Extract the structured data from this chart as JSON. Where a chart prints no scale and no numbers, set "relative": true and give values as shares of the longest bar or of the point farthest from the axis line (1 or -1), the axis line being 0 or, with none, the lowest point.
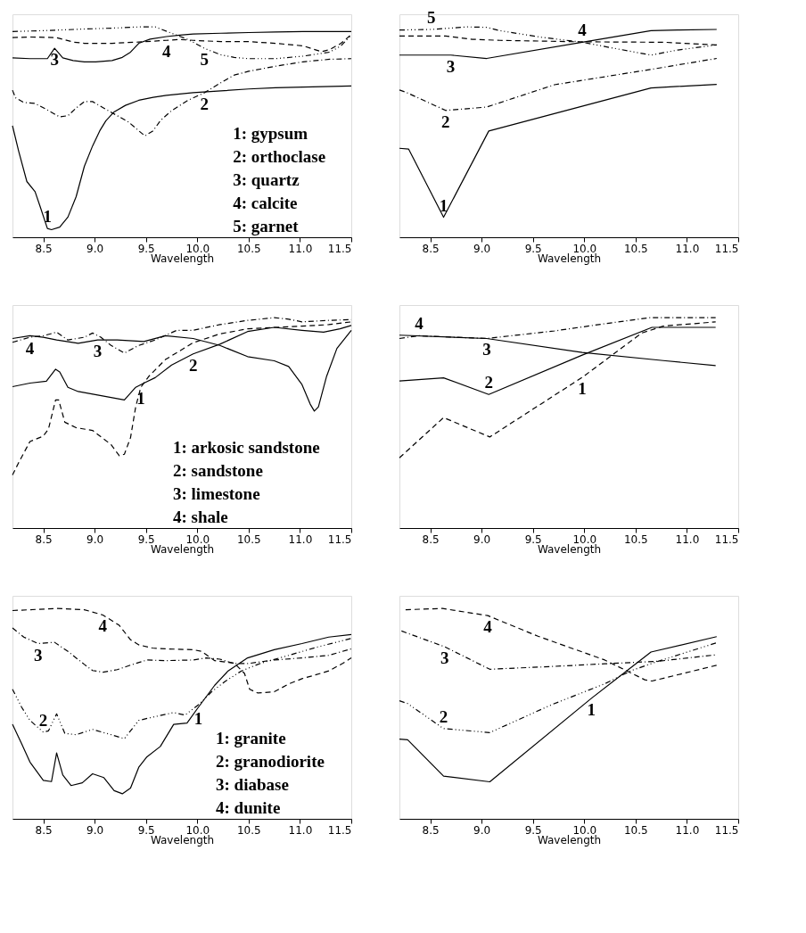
{
  "chart_data": [
    {
      "type": "line",
      "relative": true,
      "xlabel": "Wavelength",
      "xlim": [
        8.2,
        11.5
      ],
      "xticks": [
        8.5,
        {
          "value": 9,
          "label": "9.0"
        },
        9.5,
        {
          "value": 10,
          "label": "10.0"
        },
        10.5,
        {
          "value": 11,
          "label": "11.0"
        },
        11.5
      ],
      "grid": false,
      "series": [
        {
          "name": "1",
          "color": "#000000",
          "line_style": "solid",
          "x": [
            8.2,
            8.26,
            8.34,
            8.42,
            8.47,
            8.54,
            8.58,
            8.66,
            8.74,
            8.82,
            8.9,
            8.98,
            9.05,
            9.11,
            9.19,
            9.3,
            9.43,
            9.57,
            9.7,
            9.96,
            10.23,
            10.5,
            10.76,
            11.03,
            11.5
          ],
          "values": [
            0.53,
            0.41,
            0.265,
            0.217,
            0.145,
            0.042,
            0.036,
            0.048,
            0.096,
            0.193,
            0.337,
            0.434,
            0.506,
            0.554,
            0.596,
            0.627,
            0.651,
            0.665,
            0.675,
            0.687,
            0.696,
            0.705,
            0.711,
            0.714,
            0.719
          ]
        },
        {
          "name": "2",
          "color": "#000000",
          "line_style": "dashdot",
          "x": [
            8.2,
            8.23,
            8.31,
            8.42,
            8.53,
            8.66,
            8.74,
            8.82,
            8.9,
            8.98,
            9.09,
            9.22,
            9.33,
            9.43,
            9.49,
            9.57,
            9.64,
            9.75,
            9.91,
            10.07,
            10.23,
            10.36,
            10.5,
            10.76,
            11.03,
            11.29,
            11.5
          ],
          "values": [
            0.699,
            0.663,
            0.641,
            0.636,
            0.608,
            0.572,
            0.578,
            0.614,
            0.645,
            0.645,
            0.614,
            0.578,
            0.548,
            0.506,
            0.482,
            0.506,
            0.554,
            0.602,
            0.651,
            0.687,
            0.735,
            0.771,
            0.789,
            0.813,
            0.834,
            0.846,
            0.849
          ]
        },
        {
          "name": "3",
          "color": "#000000",
          "line_style": "solid",
          "x": [
            8.2,
            8.37,
            8.54,
            8.61,
            8.69,
            8.79,
            8.9,
            9.01,
            9.17,
            9.27,
            9.35,
            9.43,
            9.54,
            9.7,
            9.83,
            9.96,
            10.23,
            10.5,
            10.76,
            11.03,
            11.5
          ],
          "values": [
            0.853,
            0.849,
            0.849,
            0.898,
            0.853,
            0.84,
            0.834,
            0.834,
            0.84,
            0.855,
            0.88,
            0.922,
            0.942,
            0.954,
            0.961,
            0.966,
            0.97,
            0.973,
            0.976,
            0.978,
            0.978
          ]
        },
        {
          "name": "4",
          "color": "#000000",
          "line_style": "dashed",
          "x": [
            8.2,
            8.37,
            8.63,
            8.79,
            8.9,
            9.17,
            9.43,
            9.7,
            9.83,
            9.96,
            10.23,
            10.5,
            10.76,
            11.03,
            11.21,
            11.29,
            11.4,
            11.5
          ],
          "values": [
            0.949,
            0.952,
            0.949,
            0.928,
            0.922,
            0.922,
            0.928,
            0.936,
            0.94,
            0.936,
            0.93,
            0.93,
            0.922,
            0.91,
            0.882,
            0.892,
            0.922,
            0.964
          ]
        },
        {
          "name": "5",
          "color": "#000000",
          "line_style": "dashdotdot",
          "x": [
            8.2,
            8.5,
            8.9,
            9.17,
            9.43,
            9.59,
            9.75,
            9.91,
            10.07,
            10.23,
            10.36,
            10.5,
            10.76,
            11.03,
            11.29,
            11.4,
            11.5
          ],
          "values": [
            0.978,
            0.982,
            0.99,
            0.994,
            1.0,
            1.0,
            0.97,
            0.94,
            0.898,
            0.867,
            0.855,
            0.849,
            0.849,
            0.861,
            0.88,
            0.91,
            0.961
          ]
        }
      ],
      "annotations": [
        "1: gypsum",
        "2: orthoclase",
        "3: quartz",
        "4: calcite",
        "5: garnet"
      ]
    },
    {
      "type": "line",
      "relative": true,
      "xlabel": "Wavelength",
      "xlim": [
        8.2,
        11.5
      ],
      "xticks": [
        8.5,
        {
          "value": 9,
          "label": "9.0"
        },
        9.5,
        {
          "value": 10,
          "label": "10.0"
        },
        10.5,
        {
          "value": 11,
          "label": "11.0"
        },
        11.5
      ],
      "grid": false,
      "series": [
        {
          "name": "1",
          "color": "#000000",
          "line_style": "solid",
          "x": [
            8.2,
            8.29,
            8.63,
            9.07,
            10.65,
            11.29
          ],
          "values": [
            0.423,
            0.419,
            0.095,
            0.505,
            0.71,
            0.727
          ]
        },
        {
          "name": "2",
          "color": "#000000",
          "line_style": "dashdot",
          "x": [
            8.2,
            8.27,
            8.65,
            9.05,
            9.71,
            10.65,
            11.29
          ],
          "values": [
            0.7,
            0.688,
            0.603,
            0.619,
            0.725,
            0.798,
            0.85
          ]
        },
        {
          "name": "3",
          "color": "#000000",
          "line_style": "solid",
          "x": [
            8.2,
            8.7,
            9.05,
            9.98,
            10.65,
            10.91,
            11.29
          ],
          "values": [
            0.866,
            0.866,
            0.85,
            0.927,
            0.982,
            0.985,
            0.988
          ]
        },
        {
          "name": "4",
          "color": "#000000",
          "line_style": "dashed",
          "x": [
            8.2,
            8.65,
            8.91,
            9.18,
            9.98,
            10.78,
            11.29
          ],
          "values": [
            0.957,
            0.957,
            0.941,
            0.936,
            0.929,
            0.927,
            0.914
          ]
        },
        {
          "name": "5",
          "color": "#000000",
          "line_style": "dashdotdot",
          "x": [
            8.2,
            8.51,
            8.86,
            9.05,
            9.18,
            9.58,
            9.98,
            10.25,
            10.65,
            10.91,
            11.29
          ],
          "values": [
            0.985,
            0.988,
            1.0,
            0.998,
            0.982,
            0.951,
            0.927,
            0.902,
            0.866,
            0.89,
            0.914
          ]
        }
      ]
    },
    {
      "type": "line",
      "relative": true,
      "xlabel": "Wavelength",
      "xlim": [
        8.2,
        11.5
      ],
      "xticks": [
        8.5,
        {
          "value": 9,
          "label": "9.0"
        },
        9.5,
        {
          "value": 10,
          "label": "10.0"
        },
        10.5,
        {
          "value": 11,
          "label": "11.0"
        },
        11.5
      ],
      "grid": false,
      "series": [
        {
          "name": "1",
          "color": "#000000",
          "line_style": "dashed",
          "x": [
            8.2,
            8.26,
            8.37,
            8.5,
            8.55,
            8.62,
            8.65,
            8.71,
            8.82,
            8.98,
            9.16,
            9.24,
            9.29,
            9.35,
            9.4,
            9.45,
            9.53,
            9.69,
            9.96,
            10.22,
            10.49,
            10.75,
            11.02,
            11.28,
            11.5
          ],
          "values": [
            0.252,
            0.311,
            0.411,
            0.437,
            0.47,
            0.609,
            0.609,
            0.503,
            0.477,
            0.464,
            0.397,
            0.344,
            0.351,
            0.43,
            0.576,
            0.669,
            0.722,
            0.801,
            0.881,
            0.923,
            0.947,
            0.954,
            0.96,
            0.967,
            0.98
          ]
        },
        {
          "name": "2",
          "color": "#000000",
          "line_style": "solid",
          "x": [
            8.2,
            8.37,
            8.53,
            8.62,
            8.66,
            8.74,
            8.84,
            9.03,
            9.29,
            9.4,
            9.48,
            9.59,
            9.75,
            9.96,
            10.22,
            10.49,
            10.75,
            11.02,
            11.23,
            11.39,
            11.5
          ],
          "values": [
            0.672,
            0.689,
            0.698,
            0.755,
            0.742,
            0.669,
            0.649,
            0.632,
            0.609,
            0.669,
            0.689,
            0.715,
            0.775,
            0.828,
            0.874,
            0.934,
            0.954,
            0.94,
            0.931,
            0.947,
            0.963
          ]
        },
        {
          "name": "3",
          "color": "#000000",
          "line_style": "solid",
          "x": [
            8.2,
            8.37,
            8.5,
            8.63,
            8.84,
            9.03,
            9.22,
            9.48,
            9.69,
            9.96,
            10.22,
            10.49,
            10.75,
            10.89,
            11.02,
            11.1,
            11.14,
            11.18,
            11.26,
            11.36,
            11.5
          ],
          "values": [
            0.901,
            0.914,
            0.907,
            0.894,
            0.878,
            0.894,
            0.894,
            0.887,
            0.914,
            0.901,
            0.868,
            0.815,
            0.795,
            0.768,
            0.682,
            0.589,
            0.556,
            0.576,
            0.722,
            0.854,
            0.94
          ]
        },
        {
          "name": "4",
          "color": "#000000",
          "line_style": "dashdot",
          "x": [
            8.2,
            8.37,
            8.5,
            8.63,
            8.74,
            8.9,
            8.98,
            9.06,
            9.16,
            9.29,
            9.43,
            9.59,
            9.8,
            9.96,
            10.22,
            10.49,
            10.75,
            10.89,
            11.02,
            11.28,
            11.5
          ],
          "values": [
            0.883,
            0.907,
            0.914,
            0.931,
            0.894,
            0.907,
            0.927,
            0.907,
            0.868,
            0.832,
            0.868,
            0.894,
            0.94,
            0.94,
            0.967,
            0.987,
            1.0,
            0.993,
            0.98,
            0.987,
            0.991
          ]
        }
      ],
      "annotations": [
        "1: arkosic sandstone",
        "2: sandstone",
        "3: limestone",
        "4: shale"
      ]
    },
    {
      "type": "line",
      "relative": true,
      "xlabel": "Wavelength",
      "xlim": [
        8.2,
        11.5
      ],
      "xticks": [
        8.5,
        {
          "value": 9,
          "label": "9.0"
        },
        9.5,
        {
          "value": 10,
          "label": "10.0"
        },
        10.5,
        {
          "value": 11,
          "label": "11.0"
        },
        11.5
      ],
      "grid": false,
      "series": [
        {
          "name": "1",
          "color": "#000000",
          "line_style": "dashed",
          "x": [
            8.2,
            8.63,
            9.08,
            9.98,
            10.56,
            10.77,
            11.28
          ],
          "values": [
            0.334,
            0.525,
            0.433,
            0.716,
            0.927,
            0.96,
            0.98
          ]
        },
        {
          "name": "2",
          "color": "#000000",
          "line_style": "solid",
          "x": [
            8.2,
            8.63,
            9.07,
            9.98,
            10.66,
            11.28
          ],
          "values": [
            0.699,
            0.714,
            0.635,
            0.822,
            0.954,
            0.954
          ]
        },
        {
          "name": "3",
          "color": "#000000",
          "line_style": "solid",
          "x": [
            8.2,
            9.05,
            9.98,
            10.77,
            11.28
          ],
          "values": [
            0.917,
            0.901,
            0.835,
            0.796,
            0.772
          ]
        },
        {
          "name": "4",
          "color": "#000000",
          "line_style": "dashdot",
          "x": [
            8.2,
            8.39,
            9.05,
            9.71,
            10.24,
            10.64,
            11.28
          ],
          "values": [
            0.901,
            0.914,
            0.901,
            0.937,
            0.974,
            1.0,
            1.0
          ]
        }
      ]
    },
    {
      "type": "line",
      "relative": true,
      "xlabel": "Wavelength",
      "xlim": [
        8.2,
        11.5
      ],
      "xticks": [
        8.5,
        {
          "value": 9,
          "label": "9.0"
        },
        9.5,
        {
          "value": 10,
          "label": "10.0"
        },
        10.5,
        {
          "value": 11,
          "label": "11.0"
        },
        11.5
      ],
      "grid": false,
      "series": [
        {
          "name": "1",
          "color": "#000000",
          "line_style": "solid",
          "x": [
            8.2,
            8.29,
            8.37,
            8.5,
            8.58,
            8.63,
            8.69,
            8.77,
            8.88,
            8.98,
            9.09,
            9.19,
            9.27,
            9.35,
            9.43,
            9.51,
            9.64,
            9.77,
            9.9,
            10.01,
            10.17,
            10.3,
            10.49,
            10.75,
            11.02,
            11.28,
            11.5
          ],
          "values": [
            0.449,
            0.356,
            0.27,
            0.183,
            0.177,
            0.313,
            0.208,
            0.158,
            0.171,
            0.214,
            0.196,
            0.134,
            0.119,
            0.146,
            0.245,
            0.295,
            0.344,
            0.449,
            0.455,
            0.53,
            0.635,
            0.703,
            0.765,
            0.804,
            0.833,
            0.864,
            0.876
          ]
        },
        {
          "name": "2",
          "color": "#000000",
          "line_style": "dashdotdot",
          "x": [
            8.2,
            8.29,
            8.37,
            8.5,
            8.55,
            8.63,
            8.71,
            8.82,
            8.98,
            9.16,
            9.29,
            9.43,
            9.59,
            9.77,
            9.88,
            10.01,
            10.14,
            10.27,
            10.43,
            10.62,
            10.89,
            11.15,
            11.5
          ],
          "values": [
            0.616,
            0.53,
            0.468,
            0.412,
            0.418,
            0.499,
            0.406,
            0.4,
            0.425,
            0.4,
            0.381,
            0.468,
            0.486,
            0.505,
            0.493,
            0.542,
            0.604,
            0.653,
            0.703,
            0.74,
            0.777,
            0.814,
            0.858
          ]
        },
        {
          "name": "3",
          "color": "#000000",
          "line_style": "dashdot",
          "x": [
            8.2,
            8.31,
            8.45,
            8.61,
            8.74,
            8.9,
            8.98,
            9.08,
            9.22,
            9.37,
            9.51,
            9.69,
            9.96,
            10.09,
            10.22,
            10.36,
            10.49,
            10.75,
            11.02,
            11.28,
            11.5
          ],
          "values": [
            0.907,
            0.864,
            0.833,
            0.839,
            0.796,
            0.734,
            0.705,
            0.697,
            0.709,
            0.734,
            0.755,
            0.752,
            0.755,
            0.765,
            0.759,
            0.738,
            0.738,
            0.755,
            0.765,
            0.777,
            0.808
          ]
        },
        {
          "name": "4",
          "color": "#000000",
          "line_style": "dashed",
          "x": [
            8.2,
            8.37,
            8.63,
            8.9,
            9.08,
            9.24,
            9.35,
            9.43,
            9.56,
            9.69,
            9.96,
            10.04,
            10.17,
            10.36,
            10.46,
            10.51,
            10.59,
            10.75,
            10.89,
            11.02,
            11.15,
            11.28,
            11.42,
            11.5
          ],
          "values": [
            0.99,
            0.994,
            1.0,
            0.994,
            0.969,
            0.92,
            0.851,
            0.827,
            0.812,
            0.808,
            0.804,
            0.796,
            0.752,
            0.74,
            0.691,
            0.616,
            0.598,
            0.604,
            0.641,
            0.666,
            0.684,
            0.703,
            0.74,
            0.765
          ]
        }
      ],
      "annotations": [
        "1: granite",
        "2: granodiorite",
        "3: diabase",
        "4: dunite"
      ]
    },
    {
      "type": "line",
      "relative": true,
      "xlabel": "Wavelength",
      "xlim": [
        8.2,
        11.5
      ],
      "xticks": [
        8.5,
        {
          "value": 9,
          "label": "9.0"
        },
        9.5,
        {
          "value": 10,
          "label": "10.0"
        },
        10.5,
        {
          "value": 11,
          "label": "11.0"
        },
        11.5
      ],
      "grid": false,
      "series": [
        {
          "name": "1",
          "color": "#000000",
          "line_style": "solid",
          "x": [
            8.2,
            8.28,
            8.63,
            9.08,
            10.07,
            10.65,
            11.29
          ],
          "values": [
            0.379,
            0.376,
            0.203,
            0.176,
            0.573,
            0.793,
            0.866
          ]
        },
        {
          "name": "2",
          "color": "#000000",
          "line_style": "dashdotdot",
          "x": [
            8.2,
            8.28,
            8.63,
            9.08,
            9.68,
            10.2,
            10.46,
            10.72,
            11.29
          ],
          "values": [
            0.561,
            0.548,
            0.429,
            0.41,
            0.542,
            0.642,
            0.705,
            0.749,
            0.837
          ]
        },
        {
          "name": "3",
          "color": "#000000",
          "line_style": "dashdot",
          "x": [
            8.22,
            8.64,
            9.08,
            9.68,
            10.2,
            10.46,
            10.72,
            11.29
          ],
          "values": [
            0.893,
            0.818,
            0.711,
            0.724,
            0.737,
            0.743,
            0.749,
            0.78
          ]
        },
        {
          "name": "4",
          "color": "#000000",
          "line_style": "dashed",
          "x": [
            8.26,
            8.62,
            9.06,
            9.55,
            10.2,
            10.59,
            10.66,
            11.29
          ],
          "values": [
            0.994,
            1.0,
            0.966,
            0.868,
            0.755,
            0.661,
            0.655,
            0.73
          ]
        }
      ]
    }
  ]
}
